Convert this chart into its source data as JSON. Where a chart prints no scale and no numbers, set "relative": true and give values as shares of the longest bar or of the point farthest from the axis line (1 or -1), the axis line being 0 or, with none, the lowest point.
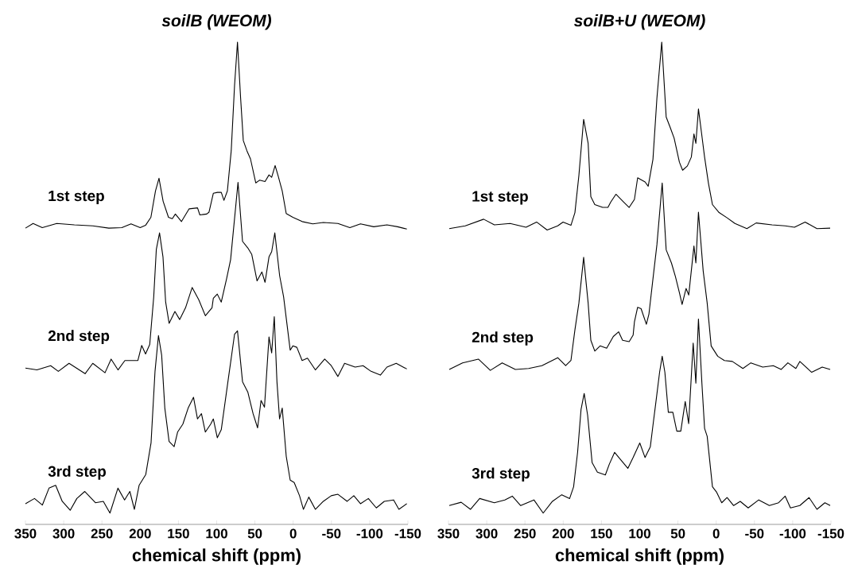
{
  "chart_data": [
    {
      "type": "line",
      "title": "soilB (WEOM)",
      "xlabel": "chemical shift (ppm)",
      "relative": true,
      "xlim": [
        350,
        -150
      ],
      "xticks": [
        350,
        300,
        250,
        200,
        150,
        100,
        50,
        0,
        -50,
        -100,
        -150
      ],
      "series": [
        {
          "name": "1st step",
          "color": "#000000",
          "x": [
            350,
            340,
            328,
            309,
            286,
            262,
            241,
            224,
            212,
            200,
            193,
            186,
            180,
            175.4,
            170,
            163,
            158,
            154,
            146,
            136,
            125,
            122,
            113,
            110,
            104.4,
            99,
            94,
            90.5,
            86,
            81,
            76.6,
            72.8,
            68.7,
            65.2,
            60.4,
            55.8,
            48.9,
            43.7,
            36.8,
            31.6,
            28.1,
            23.6,
            19.5,
            14.3,
            9.1,
            0.4,
            -11.7,
            -25.6,
            -39.4,
            -58.5,
            -74.1,
            -88,
            -105.3,
            -122.6,
            -136.5,
            -148.6
          ],
          "values": [
            0.605,
            0.615,
            0.606,
            0.615,
            0.612,
            0.61,
            0.605,
            0.606,
            0.614,
            0.606,
            0.611,
            0.628,
            0.684,
            0.711,
            0.662,
            0.628,
            0.625,
            0.635,
            0.619,
            0.646,
            0.648,
            0.633,
            0.635,
            0.639,
            0.679,
            0.681,
            0.681,
            0.664,
            0.684,
            0.769,
            0.909,
            1.0,
            0.881,
            0.791,
            0.769,
            0.752,
            0.701,
            0.707,
            0.704,
            0.718,
            0.713,
            0.738,
            0.715,
            0.684,
            0.636,
            0.628,
            0.619,
            0.614,
            0.617,
            0.615,
            0.606,
            0.614,
            0.608,
            0.612,
            0.608,
            0.603
          ]
        },
        {
          "name": "2nd step",
          "color": "#000000",
          "x": [
            350,
            335,
            317,
            307,
            293,
            272,
            262,
            246,
            238,
            229,
            220,
            203,
            198,
            193,
            187.5,
            182.3,
            178.9,
            174.7,
            170.2,
            166.7,
            162.2,
            154.6,
            148.4,
            140.7,
            132.1,
            123.4,
            114.8,
            106.1,
            104.4,
            99.2,
            94,
            87,
            81.8,
            72.1,
            66.2,
            59.3,
            54.1,
            47.2,
            40.9,
            36.8,
            31.6,
            28.1,
            24,
            17.7,
            12.5,
            3.9,
            0.4,
            -4.8,
            -11.7,
            -18.7,
            -29,
            -41.2,
            -49.8,
            -58.5,
            -67.2,
            -81,
            -91.4,
            -101.8,
            -114,
            -122.6,
            -134.7,
            -148.6
          ],
          "values": [
            0.308,
            0.304,
            0.313,
            0.301,
            0.318,
            0.296,
            0.318,
            0.298,
            0.327,
            0.304,
            0.324,
            0.324,
            0.356,
            0.338,
            0.358,
            0.459,
            0.56,
            0.595,
            0.544,
            0.448,
            0.403,
            0.428,
            0.411,
            0.436,
            0.479,
            0.453,
            0.419,
            0.436,
            0.456,
            0.465,
            0.448,
            0.498,
            0.538,
            0.702,
            0.577,
            0.563,
            0.549,
            0.493,
            0.512,
            0.49,
            0.544,
            0.555,
            0.595,
            0.504,
            0.459,
            0.346,
            0.355,
            0.352,
            0.324,
            0.329,
            0.304,
            0.327,
            0.313,
            0.29,
            0.318,
            0.31,
            0.313,
            0.301,
            0.293,
            0.31,
            0.318,
            0.306
          ]
        },
        {
          "name": "3rd step",
          "color": "#000000",
          "x": [
            350,
            338.2,
            327.9,
            319.2,
            310.5,
            301.9,
            291.5,
            282.8,
            272.4,
            258.5,
            248.2,
            239.5,
            229.1,
            220.4,
            213.5,
            207.6,
            201.4,
            192.7,
            185.8,
            180.6,
            176.1,
            171.9,
            167.8,
            162.2,
            155.6,
            151.1,
            144.2,
            137.3,
            130.3,
            125.1,
            119.9,
            114.8,
            107.8,
            104.4,
            99.2,
            94,
            85.3,
            76.6,
            72.8,
            66.2,
            59.3,
            52.4,
            46.5,
            42,
            37.5,
            31.6,
            28.1,
            24.7,
            21.2,
            17.8,
            14.3,
            9.1,
            3.9,
            -1.3,
            -8.3,
            -13.4,
            -20.4,
            -29,
            -39.4,
            -49.8,
            -58.5,
            -70.6,
            -79.3,
            -88,
            -98.3,
            -108.7,
            -119.1,
            -131.3,
            -138.2,
            -148.6
          ],
          "values": [
            0.02,
            0.031,
            0.017,
            0.053,
            0.059,
            0.025,
            0.006,
            0.031,
            0.046,
            0.022,
            0.025,
            0.0,
            0.053,
            0.028,
            0.046,
            0.008,
            0.059,
            0.082,
            0.149,
            0.301,
            0.377,
            0.335,
            0.223,
            0.152,
            0.141,
            0.172,
            0.189,
            0.223,
            0.246,
            0.2,
            0.211,
            0.172,
            0.189,
            0.2,
            0.16,
            0.177,
            0.279,
            0.38,
            0.387,
            0.279,
            0.257,
            0.211,
            0.181,
            0.239,
            0.225,
            0.374,
            0.34,
            0.417,
            0.279,
            0.2,
            0.223,
            0.121,
            0.07,
            0.065,
            0.037,
            0.008,
            0.034,
            0.008,
            0.025,
            0.037,
            0.04,
            0.025,
            0.037,
            0.02,
            0.031,
            0.011,
            0.025,
            0.028,
            0.008,
            0.02
          ]
        }
      ]
    },
    {
      "type": "line",
      "title": "soilB+U (WEOM)",
      "xlabel": "chemical shift (ppm)",
      "relative": true,
      "xlim": [
        350,
        -150
      ],
      "xticks": [
        350,
        300,
        250,
        200,
        150,
        100,
        50,
        0,
        -50,
        -100,
        -150
      ],
      "series": [
        {
          "name": "1st step",
          "color": "#000000",
          "x": [
            349,
            328,
            304,
            290,
            269.4,
            248.6,
            234.8,
            221,
            207.2,
            200.2,
            189.9,
            184.7,
            179.5,
            173.3,
            167.4,
            163.9,
            158.7,
            148.4,
            141.5,
            138,
            131.1,
            120.7,
            113.8,
            106.9,
            102.7,
            93,
            88.9,
            82.7,
            77.5,
            71.2,
            65.4,
            60.2,
            55,
            48.1,
            43.9,
            37.7,
            32.5,
            29.1,
            26.6,
            23.2,
            18.7,
            15.2,
            10.1,
            4.9,
            -3.8,
            -14.2,
            -24.5,
            -40.1,
            -52.2,
            -73,
            -90.2,
            -102.3,
            -116.2,
            -131.7,
            -149
          ],
          "values": [
            0.604,
            0.61,
            0.624,
            0.612,
            0.615,
            0.607,
            0.618,
            0.601,
            0.61,
            0.618,
            0.611,
            0.638,
            0.717,
            0.836,
            0.785,
            0.672,
            0.655,
            0.649,
            0.649,
            0.66,
            0.677,
            0.66,
            0.649,
            0.666,
            0.712,
            0.703,
            0.694,
            0.751,
            0.881,
            1.0,
            0.841,
            0.819,
            0.796,
            0.745,
            0.728,
            0.737,
            0.756,
            0.805,
            0.785,
            0.858,
            0.801,
            0.756,
            0.7,
            0.655,
            0.638,
            0.627,
            0.615,
            0.604,
            0.616,
            0.612,
            0.61,
            0.607,
            0.618,
            0.604,
            0.605
          ]
        },
        {
          "name": "2nd step",
          "color": "#000000",
          "x": [
            349,
            331.6,
            310.9,
            295.3,
            279.8,
            262.5,
            245.2,
            227.9,
            207.2,
            196.8,
            189.9,
            184.7,
            179.5,
            173.3,
            167.4,
            163.9,
            158.7,
            151.8,
            143.2,
            134.5,
            127.6,
            122.4,
            113.8,
            108.6,
            106.9,
            102.7,
            98.2,
            91.3,
            87.9,
            82.7,
            77.5,
            70.6,
            65.4,
            58.5,
            53.3,
            48.1,
            44.6,
            39.4,
            35.9,
            29.1,
            26.6,
            23.2,
            17,
            11.8,
            6.6,
            -2,
            -10.7,
            -21.1,
            -34.9,
            -45.3,
            -60.8,
            -74.7,
            -85,
            -93.7,
            -104.1,
            -109.3,
            -124.8,
            -138.6,
            -149
          ],
          "values": [
            0.305,
            0.319,
            0.327,
            0.303,
            0.319,
            0.305,
            0.307,
            0.313,
            0.33,
            0.313,
            0.324,
            0.389,
            0.446,
            0.543,
            0.446,
            0.367,
            0.344,
            0.355,
            0.35,
            0.375,
            0.385,
            0.367,
            0.364,
            0.378,
            0.406,
            0.437,
            0.434,
            0.401,
            0.423,
            0.497,
            0.57,
            0.701,
            0.559,
            0.531,
            0.502,
            0.468,
            0.443,
            0.477,
            0.463,
            0.567,
            0.531,
            0.639,
            0.514,
            0.446,
            0.355,
            0.333,
            0.324,
            0.322,
            0.307,
            0.319,
            0.31,
            0.313,
            0.305,
            0.319,
            0.307,
            0.322,
            0.299,
            0.31,
            0.305
          ]
        },
        {
          "name": "3rd step",
          "color": "#000000",
          "x": [
            349,
            333.4,
            321.3,
            309.2,
            290.1,
            276.3,
            266.6,
            255.6,
            238.3,
            226.2,
            214.1,
            201.9,
            191.6,
            186.4,
            181.2,
            176.7,
            172.6,
            168.1,
            162.2,
            155.3,
            144.9,
            139.7,
            132.8,
            124.2,
            115.5,
            108.6,
            99.9,
            93,
            86.1,
            82.7,
            79.2,
            74,
            70.6,
            67.1,
            62.6,
            56.7,
            51.5,
            46.3,
            40.5,
            36,
            30.1,
            26.6,
            23.2,
            18.7,
            15.2,
            11.8,
            4.9,
            -0.3,
            -7.2,
            -14.2,
            -22.8,
            -31.4,
            -41.8,
            -55.6,
            -69.5,
            -81.6,
            -90.2,
            -97.1,
            -109.3,
            -121.4,
            -131.7,
            -142.1,
            -149
          ],
          "values": [
            0.016,
            0.023,
            0.008,
            0.031,
            0.022,
            0.028,
            0.036,
            0.016,
            0.028,
            0.0,
            0.025,
            0.039,
            0.031,
            0.056,
            0.129,
            0.22,
            0.254,
            0.208,
            0.107,
            0.087,
            0.081,
            0.104,
            0.129,
            0.112,
            0.095,
            0.118,
            0.149,
            0.118,
            0.141,
            0.186,
            0.231,
            0.299,
            0.333,
            0.299,
            0.214,
            0.214,
            0.174,
            0.174,
            0.237,
            0.19,
            0.361,
            0.276,
            0.412,
            0.276,
            0.18,
            0.163,
            0.056,
            0.045,
            0.022,
            0.033,
            0.016,
            0.025,
            0.011,
            0.028,
            0.016,
            0.022,
            0.036,
            0.011,
            0.016,
            0.033,
            0.008,
            0.022,
            0.016
          ]
        }
      ]
    }
  ]
}
